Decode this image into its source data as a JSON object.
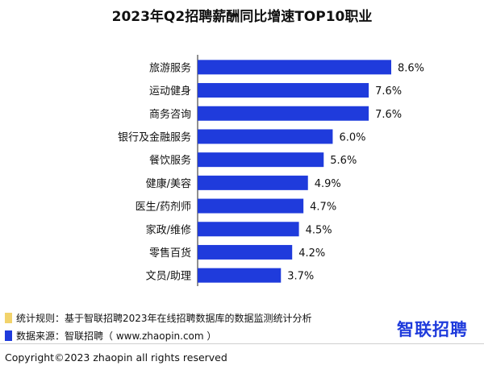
{
  "title": "2023年Q2招聘薪酬同比增速TOP10职业",
  "chart_data": {
    "type": "bar",
    "orientation": "horizontal",
    "title": "2023年Q2招聘薪酬同比增速TOP10职业",
    "xlabel": "",
    "ylabel": "",
    "categories": [
      "旅游服务",
      "运动健身",
      "商务咨询",
      "银行及金融服务",
      "餐饮服务",
      "健康/美容",
      "医生/药剂师",
      "家政/维修",
      "零售百货",
      "文员/助理"
    ],
    "values": [
      8.6,
      7.6,
      7.6,
      6.0,
      5.6,
      4.9,
      4.7,
      4.5,
      4.2,
      3.7
    ],
    "value_labels": [
      "8.6%",
      "7.6%",
      "7.6%",
      "6.0%",
      "5.6%",
      "4.9%",
      "4.7%",
      "4.5%",
      "4.2%",
      "3.7%"
    ],
    "xlim": [
      0,
      8.6
    ],
    "grid": false,
    "bar_color": "#1f3bdc"
  },
  "notes": {
    "stat_rule": "统计规则：基于智联招聘2023年在线招聘数据库的数据监测统计分析",
    "data_source": "数据来源：智联招聘（ www.zhaopin.com ）",
    "stat_color": "#f2d36b",
    "source_color": "#1f3bdc"
  },
  "logo": {
    "text": "智联招聘",
    "color": "#1f3bdc"
  },
  "copyright": "Copyright©2023 zhaopin all rights reserved"
}
